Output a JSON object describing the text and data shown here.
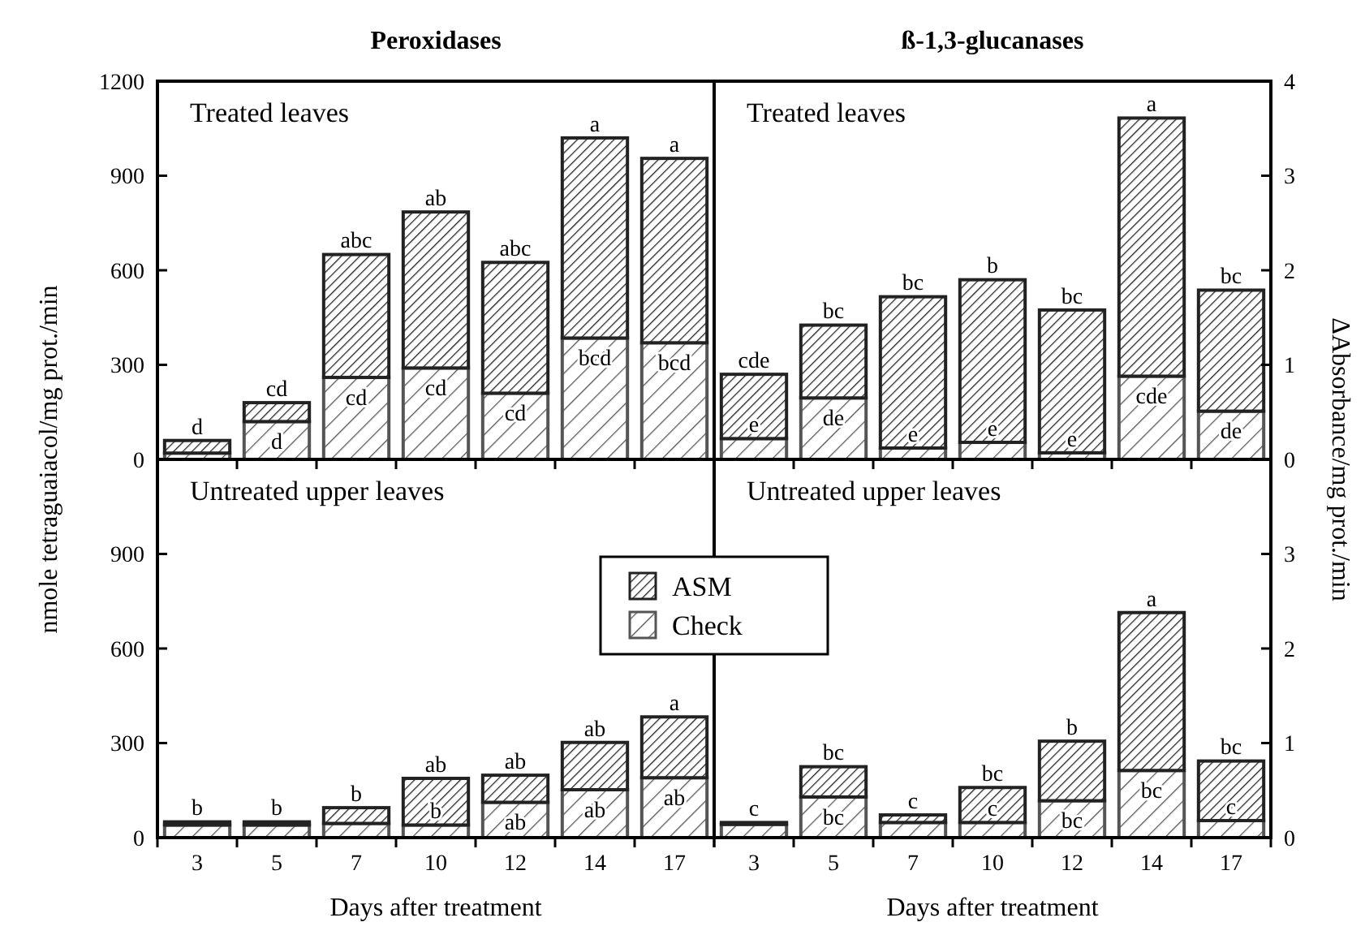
{
  "chart_data": [
    {
      "type": "bar",
      "stacked": true,
      "title": "Peroxidases",
      "ylabel": "nmole tetraguaiacol/mg prot./min",
      "categories": [
        "3",
        "5",
        "7",
        "10",
        "12",
        "14",
        "17"
      ],
      "ylim": [
        0,
        1200
      ],
      "yticks": [
        0,
        300,
        600,
        900,
        1200
      ],
      "tick_labels": "y",
      "series": [
        {
          "color": "#555555",
          "values": [
            20,
            120,
            260,
            290,
            210,
            385,
            370
          ]
        },
        {
          "color": "#222222",
          "values": [
            40,
            60,
            390,
            495,
            415,
            635,
            585
          ]
        }
      ],
      "annotations": [
        "Treated leaves",
        {
          "text": "d",
          "x": "3",
          "y": 60
        },
        {
          "text": "cd",
          "x": "5",
          "y": 180
        },
        {
          "text": "abc",
          "x": "7",
          "y": 650
        },
        {
          "text": "ab",
          "x": "10",
          "y": 785
        },
        {
          "text": "abc",
          "x": "12",
          "y": 625
        },
        {
          "text": "a",
          "x": "14",
          "y": 1020
        },
        {
          "text": "a",
          "x": "17",
          "y": 955
        },
        {
          "text": "d",
          "x": "5",
          "y": 120
        },
        {
          "text": "cd",
          "x": "7",
          "y": 260
        },
        {
          "text": "cd",
          "x": "10",
          "y": 290
        },
        {
          "text": "cd",
          "x": "12",
          "y": 210
        },
        {
          "text": "bcd",
          "x": "14",
          "y": 385
        },
        {
          "text": "bcd",
          "x": "17",
          "y": 370
        }
      ]
    },
    {
      "type": "bar",
      "stacked": true,
      "title": "ß-1,3-glucanases",
      "ylabel": "ΔAbsorbance/mg prot./min",
      "categories": [
        "3",
        "5",
        "7",
        "10",
        "12",
        "14",
        "17"
      ],
      "ylim": [
        0,
        4
      ],
      "yticks": [
        0,
        1,
        2,
        3,
        4
      ],
      "tick_labels": "y",
      "series": [
        {
          "color": "#555555",
          "values": [
            0.22,
            0.65,
            0.12,
            0.18,
            0.07,
            0.88,
            0.51
          ]
        },
        {
          "color": "#222222",
          "values": [
            0.68,
            0.77,
            1.6,
            1.72,
            1.51,
            2.73,
            1.28
          ]
        }
      ],
      "annotations": [
        "Treated leaves",
        {
          "text": "cde",
          "x": "3",
          "y": 0.9
        },
        {
          "text": "bc",
          "x": "5",
          "y": 1.42
        },
        {
          "text": "bc",
          "x": "7",
          "y": 1.72
        },
        {
          "text": "b",
          "x": "10",
          "y": 1.9
        },
        {
          "text": "bc",
          "x": "12",
          "y": 1.58
        },
        {
          "text": "a",
          "x": "14",
          "y": 3.61
        },
        {
          "text": "bc",
          "x": "17",
          "y": 1.79
        },
        {
          "text": "e",
          "x": "3",
          "y": 0.22
        },
        {
          "text": "de",
          "x": "5",
          "y": 0.65
        },
        {
          "text": "e",
          "x": "7",
          "y": 0.12
        },
        {
          "text": "e",
          "x": "10",
          "y": 0.18
        },
        {
          "text": "e",
          "x": "12",
          "y": 0.07
        },
        {
          "text": "cde",
          "x": "14",
          "y": 0.88
        },
        {
          "text": "de",
          "x": "17",
          "y": 0.51
        }
      ]
    },
    {
      "type": "bar",
      "stacked": true,
      "xlabel": "Days after treatment",
      "categories": [
        "3",
        "5",
        "7",
        "10",
        "12",
        "14",
        "17"
      ],
      "ylim": [
        0,
        1200
      ],
      "yticks": [
        0,
        300,
        600,
        900
      ],
      "legend": "right",
      "series": [
        {
          "name": "Check",
          "color": "#555555",
          "values": [
            40,
            40,
            45,
            40,
            112,
            152,
            190
          ]
        },
        {
          "name": "ASM",
          "color": "#222222",
          "values": [
            10,
            10,
            50,
            148,
            86,
            150,
            193
          ]
        }
      ],
      "annotations": [
        "Untreated upper leaves",
        {
          "text": "b",
          "x": "3",
          "y": 50
        },
        {
          "text": "b",
          "x": "5",
          "y": 50
        },
        {
          "text": "b",
          "x": "7",
          "y": 95
        },
        {
          "text": "ab",
          "x": "10",
          "y": 188
        },
        {
          "text": "ab",
          "x": "12",
          "y": 198
        },
        {
          "text": "ab",
          "x": "14",
          "y": 302
        },
        {
          "text": "a",
          "x": "17",
          "y": 383
        },
        {
          "text": "b",
          "x": "10",
          "y": 40
        },
        {
          "text": "ab",
          "x": "12",
          "y": 112
        },
        {
          "text": "ab",
          "x": "14",
          "y": 152
        },
        {
          "text": "ab",
          "x": "17",
          "y": 190
        }
      ]
    },
    {
      "type": "bar",
      "stacked": true,
      "xlabel": "Days after treatment",
      "categories": [
        "3",
        "5",
        "7",
        "10",
        "12",
        "14",
        "17"
      ],
      "ylim": [
        0,
        4
      ],
      "yticks": [
        0,
        1,
        2,
        3
      ],
      "series": [
        {
          "color": "#555555",
          "values": [
            0.14,
            0.43,
            0.16,
            0.16,
            0.39,
            0.71,
            0.18
          ]
        },
        {
          "color": "#222222",
          "values": [
            0.02,
            0.32,
            0.08,
            0.37,
            0.63,
            1.67,
            0.63
          ]
        }
      ],
      "annotations": [
        "Untreated upper leaves",
        {
          "text": "c",
          "x": "3",
          "y": 0.16
        },
        {
          "text": "bc",
          "x": "5",
          "y": 0.75
        },
        {
          "text": "c",
          "x": "7",
          "y": 0.24
        },
        {
          "text": "bc",
          "x": "10",
          "y": 0.53
        },
        {
          "text": "b",
          "x": "12",
          "y": 1.02
        },
        {
          "text": "a",
          "x": "14",
          "y": 2.38
        },
        {
          "text": "bc",
          "x": "17",
          "y": 0.81
        },
        {
          "text": "bc",
          "x": "5",
          "y": 0.43
        },
        {
          "text": "c",
          "x": "10",
          "y": 0.16
        },
        {
          "text": "bc",
          "x": "12",
          "y": 0.39
        },
        {
          "text": "bc",
          "x": "14",
          "y": 0.71
        },
        {
          "text": "c",
          "x": "17",
          "y": 0.18
        }
      ]
    }
  ]
}
